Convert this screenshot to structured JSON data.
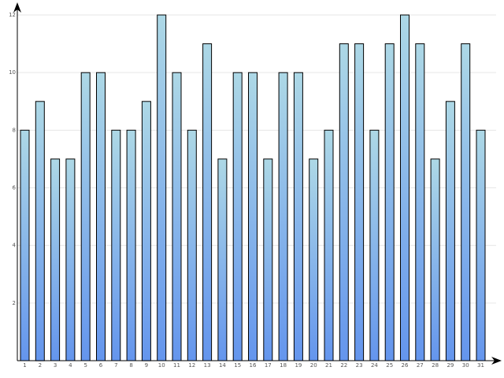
{
  "chart_data": {
    "type": "bar",
    "categories": [
      "1",
      "2",
      "3",
      "4",
      "5",
      "6",
      "7",
      "8",
      "9",
      "10",
      "11",
      "12",
      "13",
      "14",
      "15",
      "16",
      "17",
      "18",
      "19",
      "20",
      "21",
      "22",
      "23",
      "24",
      "25",
      "26",
      "27",
      "28",
      "29",
      "30",
      "31"
    ],
    "values": [
      8,
      9,
      7,
      7,
      10,
      10,
      8,
      8,
      9,
      12,
      10,
      8,
      11,
      7,
      10,
      10,
      7,
      10,
      10,
      7,
      8,
      11,
      11,
      8,
      11,
      12,
      11,
      7,
      9,
      11,
      8
    ],
    "yticks": [
      2,
      4,
      6,
      8,
      10,
      12
    ],
    "ytick_labels": [
      "2",
      "4",
      "6",
      "8",
      "10",
      "12"
    ],
    "ylim": [
      0,
      12
    ],
    "grid": true,
    "legend": "none"
  },
  "colors": {
    "bar_top": "#add8e6",
    "bar_bottom": "#6495ed",
    "bar_stroke": "#000000",
    "grid": "#e6e6e6",
    "axis": "#000000"
  }
}
